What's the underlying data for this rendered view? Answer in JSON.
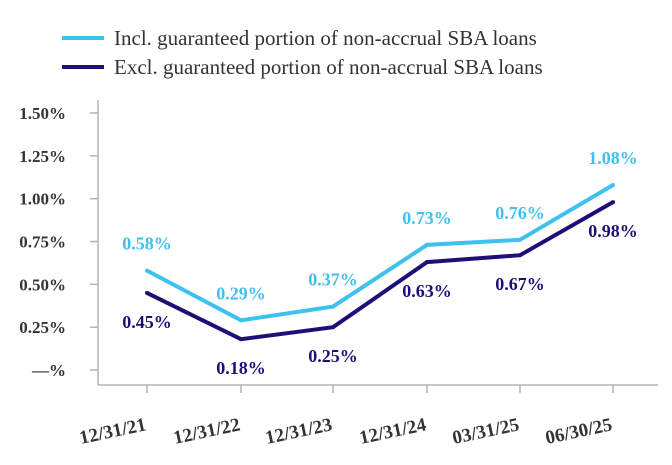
{
  "chart_data": {
    "type": "line",
    "title": "",
    "xlabel": "",
    "ylabel": "",
    "categories": [
      "12/31/21",
      "12/31/22",
      "12/31/23",
      "12/31/24",
      "03/31/25",
      "06/30/25"
    ],
    "ylim": [
      0,
      1.5
    ],
    "y_ticks": [
      0,
      0.25,
      0.5,
      0.75,
      1.0,
      1.25,
      1.5
    ],
    "y_tick_labels": [
      "—%",
      "0.25%",
      "0.50%",
      "0.75%",
      "1.00%",
      "1.25%",
      "1.50%"
    ],
    "grid": false,
    "legend_position": "top-center",
    "series": [
      {
        "name": "Incl. guaranteed portion of non-accrual SBA loans",
        "color": "#3ec1ee",
        "values": [
          0.58,
          0.29,
          0.37,
          0.73,
          0.76,
          1.08
        ],
        "labels": [
          "0.58%",
          "0.29%",
          "0.37%",
          "0.73%",
          "0.76%",
          "1.08%"
        ]
      },
      {
        "name": "Excl. guaranteed portion of non-accrual SBA loans",
        "color": "#1e0f78",
        "values": [
          0.45,
          0.18,
          0.25,
          0.63,
          0.67,
          0.98
        ],
        "labels": [
          "0.45%",
          "0.18%",
          "0.25%",
          "0.63%",
          "0.67%",
          "0.98%"
        ]
      }
    ]
  }
}
